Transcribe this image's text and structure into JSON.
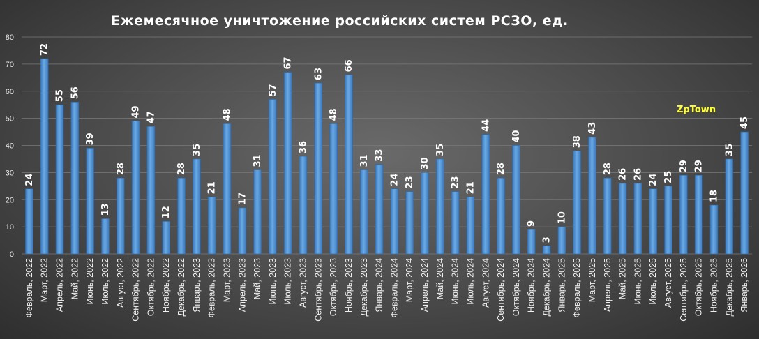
{
  "watermark": "ZpTown",
  "colors": {
    "bar": "#5b9bd5",
    "bar_dark": "#2f6aa8",
    "grid": "#7a7a7a"
  },
  "chart_data": {
    "type": "bar",
    "title": "Ежемесячное  уничтожение  российских  систем РСЗО,  ед.",
    "xlabel": "",
    "ylabel": "",
    "ylim": [
      0,
      80
    ],
    "yticks": [
      0,
      10,
      20,
      30,
      40,
      50,
      60,
      70,
      80
    ],
    "grid": true,
    "categories": [
      "Февраль, 2022",
      "Март, 2022",
      "Апрель, 2022",
      "Май, 2022",
      "Июнь, 2022",
      "Июль, 2022",
      "Август, 2022",
      "Сентябрь, 2022",
      "Октябрь, 2022",
      "Ноябрь, 2022",
      "Декабрь, 2022",
      "Январь, 2023",
      "Февраль, 2023",
      "Март, 2023",
      "Апрель, 2023",
      "Май, 2023",
      "Июнь, 2023",
      "Июль, 2023",
      "Август, 2023",
      "Сентябрь, 2023",
      "Октябрь, 2023",
      "Ноябрь, 2023",
      "Декабрь, 2023",
      "Январь, 2024",
      "Февраль, 2024",
      "Март, 2024",
      "Апрель, 2024",
      "Май, 2024",
      "Июнь, 2024",
      "Июль, 2024",
      "Август, 2024",
      "Сентябрь, 2024",
      "Октябрь, 2024",
      "Ноябрь, 2024",
      "Декабрь, 2024",
      "Январь, 2025",
      "Февраль, 2025",
      "Март, 2025",
      "Апрель, 2025",
      "Май, 2025",
      "Июнь, 2025",
      "Июль, 2025",
      "Август, 2025",
      "Сентябрь, 2025",
      "Октябрь, 2025",
      "Ноябрь, 2025",
      "Декабрь, 2025",
      "Январь, 2026"
    ],
    "values": [
      24,
      72,
      55,
      56,
      39,
      13,
      28,
      49,
      47,
      12,
      28,
      35,
      21,
      48,
      17,
      31,
      57,
      67,
      36,
      63,
      48,
      66,
      31,
      33,
      24,
      23,
      30,
      35,
      23,
      21,
      44,
      28,
      40,
      9,
      3,
      10,
      38,
      43,
      28,
      26,
      26,
      24,
      25,
      29,
      29,
      18,
      35,
      45
    ]
  }
}
